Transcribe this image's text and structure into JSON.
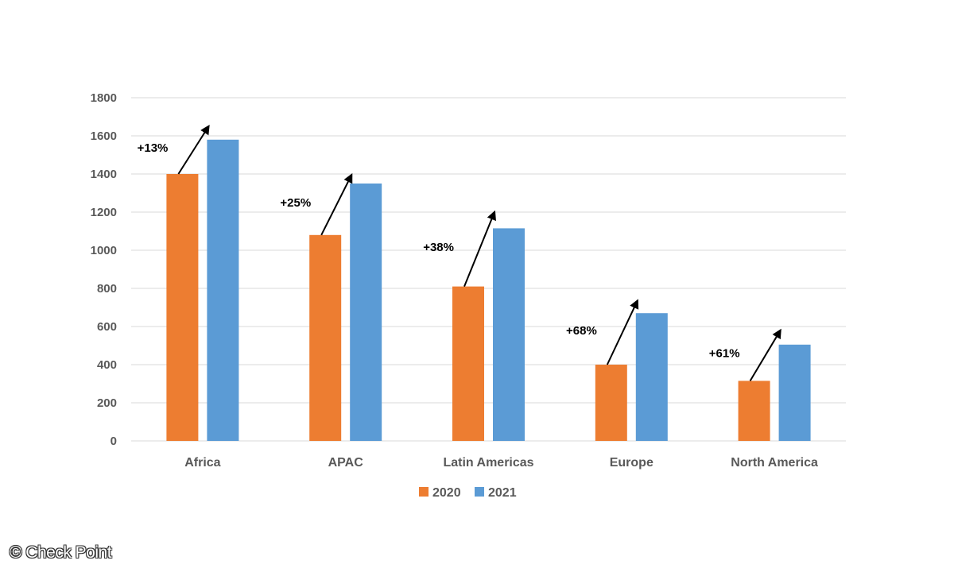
{
  "chart_data": {
    "type": "bar",
    "title": "",
    "xlabel": "",
    "ylabel": "",
    "categories": [
      "Africa",
      "APAC",
      "Latin Americas",
      "Europe",
      "North America"
    ],
    "series": [
      {
        "name": "2020",
        "color": "#ED7D31",
        "values": [
          1400,
          1080,
          810,
          400,
          315
        ]
      },
      {
        "name": "2021",
        "color": "#5B9BD5",
        "values": [
          1580,
          1350,
          1115,
          670,
          505
        ]
      }
    ],
    "ylim": [
      0,
      1800
    ],
    "yticks": [
      0,
      200,
      400,
      600,
      800,
      1000,
      1200,
      1400,
      1600,
      1800
    ],
    "grid": true,
    "legend_position": "bottom",
    "annotations": [
      {
        "category": "Africa",
        "text": "+13%",
        "arrow_tip_value": 1650
      },
      {
        "category": "APAC",
        "text": "+25%",
        "arrow_tip_value": 1395
      },
      {
        "category": "Latin Americas",
        "text": "+38%",
        "arrow_tip_value": 1200
      },
      {
        "category": "Europe",
        "text": "+68%",
        "arrow_tip_value": 735
      },
      {
        "category": "North America",
        "text": "+61%",
        "arrow_tip_value": 580
      }
    ]
  },
  "watermark": "© Check Point"
}
